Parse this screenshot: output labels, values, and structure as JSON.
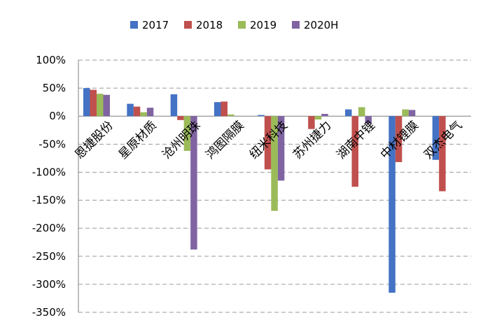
{
  "chart_data": {
    "type": "bar",
    "title": "",
    "xlabel": "",
    "ylabel": "",
    "categories": [
      "恩捷股份",
      "星原材质",
      "沧州明珠",
      "鸿图隔膜",
      "纽米科技",
      "苏州捷力",
      "湖南中锂",
      "中材锂膜",
      "双杰电气"
    ],
    "series": [
      {
        "name": "2017",
        "color": "#4472C4",
        "values": [
          50,
          22,
          39,
          25,
          2,
          0,
          12,
          -315,
          -78
        ]
      },
      {
        "name": "2018",
        "color": "#C0504D",
        "values": [
          47,
          17,
          -7,
          26,
          -95,
          -23,
          -126,
          -82,
          -134
        ]
      },
      {
        "name": "2019",
        "color": "#9BBB59",
        "values": [
          40,
          7,
          -62,
          3,
          -169,
          -6,
          16,
          12,
          0
        ]
      },
      {
        "name": "2020H",
        "color": "#8064A2",
        "values": [
          38,
          15,
          -238,
          0,
          -115,
          4,
          -13,
          11,
          0
        ]
      }
    ],
    "ylim": [
      -350,
      100
    ],
    "yticks": [
      "100%",
      "50%",
      "0%",
      "-50%",
      "-100%",
      "-150%",
      "-200%",
      "-250%",
      "-300%",
      "-350%"
    ],
    "grid": true,
    "legend_position": "top"
  }
}
